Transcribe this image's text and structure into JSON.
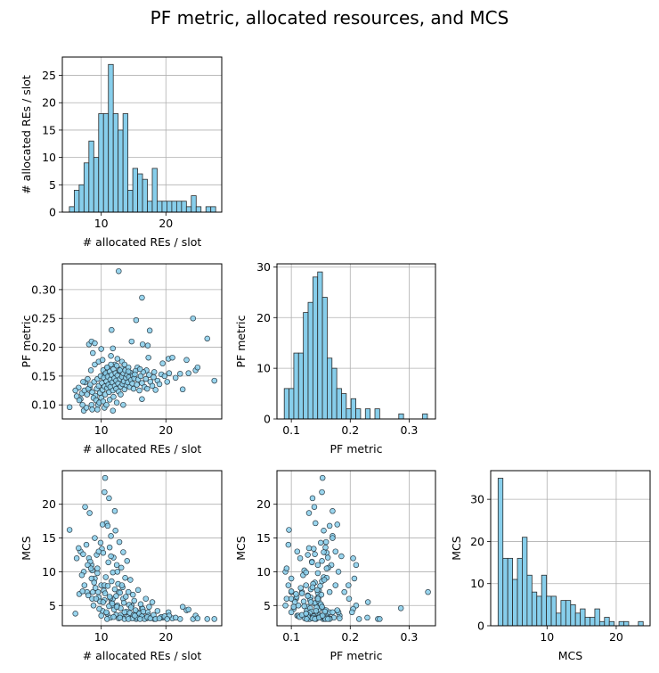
{
  "chart_data": {
    "type": "scatter",
    "title": "PF metric, allocated resources, and MCS",
    "variables": [
      {
        "key": "re",
        "label": "# allocated REs / slot",
        "lim": [
          3.98,
          28.64
        ],
        "ticks": [
          10,
          20
        ],
        "tick_labels": [
          "10",
          "20"
        ]
      },
      {
        "key": "pf",
        "label": "PF metric",
        "lim": [
          0.0756,
          0.3447
        ],
        "ticks": [
          0.1,
          0.2,
          0.3
        ],
        "tick_labels": [
          "0.1",
          "0.2",
          "0.3"
        ],
        "y_ticks": [
          0.1,
          0.15,
          0.2,
          0.25,
          0.3
        ],
        "y_tick_labels": [
          "0.10",
          "0.15",
          "0.20",
          "0.25",
          "0.30"
        ]
      },
      {
        "key": "mcs",
        "label": "MCS",
        "lim": [
          2.0,
          24.98
        ],
        "x_lim": [
          1.85,
          24.9
        ],
        "ticks": [
          10,
          20
        ],
        "tick_labels": [
          "10",
          "20"
        ],
        "y_ticks": [
          5,
          10,
          15,
          20
        ],
        "y_tick_labels": [
          "5",
          "10",
          "15",
          "20"
        ]
      }
    ],
    "histograms": [
      {
        "variable": "re",
        "bin_range": [
          5.07,
          27.7
        ],
        "counts": [
          1,
          4,
          5,
          9,
          13,
          10,
          18,
          18,
          27,
          18,
          15,
          18,
          4,
          8,
          7,
          6,
          2,
          8,
          2,
          2,
          2,
          2,
          2,
          2,
          1,
          3,
          1,
          0,
          1,
          1
        ],
        "ylim": [
          0,
          28.35
        ],
        "y_ticks": [
          0,
          5,
          10,
          15,
          20,
          25
        ],
        "y_tick_labels": [
          "0",
          "5",
          "10",
          "15",
          "20",
          "25"
        ]
      },
      {
        "variable": "pf",
        "bin_range": [
          0.088,
          0.331
        ],
        "counts": [
          6,
          6,
          13,
          13,
          21,
          23,
          28,
          29,
          24,
          12,
          10,
          6,
          5,
          2,
          4,
          2,
          0,
          2,
          0,
          2,
          0,
          0,
          0,
          0,
          1,
          0,
          0,
          0,
          0,
          1
        ],
        "ylim": [
          0,
          30.6
        ],
        "y_ticks": [
          0,
          10,
          20,
          30
        ],
        "y_tick_labels": [
          "0",
          "10",
          "20",
          "30"
        ]
      },
      {
        "variable": "mcs",
        "bin_range": [
          2.92,
          23.9
        ],
        "counts": [
          35,
          16,
          16,
          11,
          16,
          21,
          12,
          8,
          7,
          12,
          7,
          7,
          3,
          6,
          6,
          5,
          3,
          4,
          2,
          2,
          4,
          1,
          2,
          1,
          0,
          1,
          1,
          0,
          0,
          1
        ],
        "ylim": [
          0,
          36.8
        ],
        "y_ticks": [
          0,
          10,
          20,
          30
        ],
        "y_tick_labels": [
          "0",
          "10",
          "20",
          "30"
        ]
      }
    ],
    "points_columns": [
      "re",
      "pf",
      "mcs"
    ],
    "points": [
      [
        12.7,
        0.332,
        7.0
      ],
      [
        16.3,
        0.286,
        4.6
      ],
      [
        15.4,
        0.247,
        3.0
      ],
      [
        24.2,
        0.25,
        3.0
      ],
      [
        11.6,
        0.23,
        5.5
      ],
      [
        17.5,
        0.229,
        3.2
      ],
      [
        26.4,
        0.215,
        3.0
      ],
      [
        27.5,
        0.142,
        3.0
      ],
      [
        22.6,
        0.127,
        4.8
      ],
      [
        5.1,
        0.096,
        16.2
      ],
      [
        10.6,
        0.153,
        23.9
      ],
      [
        10.5,
        0.152,
        21.8
      ],
      [
        11.2,
        0.136,
        20.9
      ],
      [
        7.5,
        0.139,
        19.6
      ],
      [
        8.2,
        0.13,
        18.7
      ],
      [
        12.1,
        0.17,
        19.0
      ],
      [
        8.1,
        0.205,
        12.0
      ],
      [
        8.5,
        0.21,
        11.0
      ],
      [
        9.0,
        0.207,
        9.0
      ],
      [
        8.7,
        0.19,
        7.0
      ],
      [
        10.0,
        0.197,
        8.0
      ],
      [
        11.8,
        0.198,
        6.0
      ],
      [
        14.7,
        0.21,
        5.0
      ],
      [
        16.4,
        0.205,
        4.5
      ],
      [
        17.2,
        0.203,
        4.0
      ],
      [
        17.3,
        0.182,
        3.5
      ],
      [
        20.4,
        0.18,
        4.0
      ],
      [
        19.5,
        0.172,
        3.2
      ],
      [
        21.0,
        0.182,
        3.1
      ],
      [
        23.2,
        0.178,
        4.3
      ],
      [
        24.6,
        0.16,
        3.5
      ],
      [
        24.9,
        0.165,
        3.1
      ],
      [
        23.5,
        0.155,
        4.4
      ],
      [
        22.2,
        0.154,
        3.0
      ],
      [
        20.5,
        0.155,
        3.5
      ],
      [
        19.3,
        0.153,
        3.3
      ],
      [
        18.2,
        0.157,
        3.0
      ],
      [
        17.0,
        0.16,
        3.1
      ],
      [
        15.6,
        0.165,
        4.0
      ],
      [
        6.8,
        0.11,
        13.0
      ],
      [
        6.2,
        0.115,
        12.0
      ],
      [
        7.3,
        0.09,
        10.0
      ],
      [
        7.7,
        0.095,
        14.0
      ],
      [
        8.5,
        0.1,
        9.0
      ],
      [
        8.6,
        0.092,
        6.0
      ],
      [
        9.5,
        0.1,
        7.0
      ],
      [
        10.5,
        0.095,
        8.0
      ],
      [
        11.8,
        0.09,
        5.0
      ],
      [
        13.4,
        0.1,
        6.0
      ],
      [
        16.3,
        0.11,
        3.5
      ],
      [
        7.0,
        0.12,
        9.5
      ],
      [
        7.4,
        0.125,
        8.0
      ],
      [
        7.8,
        0.118,
        7.0
      ],
      [
        8.0,
        0.128,
        6.5
      ],
      [
        8.3,
        0.135,
        11.5
      ],
      [
        8.6,
        0.122,
        10.2
      ],
      [
        8.9,
        0.14,
        8.4
      ],
      [
        9.1,
        0.116,
        7.6
      ],
      [
        9.3,
        0.128,
        12.5
      ],
      [
        9.4,
        0.145,
        9.8
      ],
      [
        9.6,
        0.133,
        6.2
      ],
      [
        9.8,
        0.121,
        5.6
      ],
      [
        9.9,
        0.15,
        14.3
      ],
      [
        10.1,
        0.138,
        13.4
      ],
      [
        10.2,
        0.126,
        4.2
      ],
      [
        10.3,
        0.16,
        12.8
      ],
      [
        10.4,
        0.147,
        7.2
      ],
      [
        10.5,
        0.132,
        5.8
      ],
      [
        10.6,
        0.118,
        6.8
      ],
      [
        10.7,
        0.155,
        9.2
      ],
      [
        10.8,
        0.141,
        17.2
      ],
      [
        10.9,
        0.129,
        3.8
      ],
      [
        11.0,
        0.165,
        16.8
      ],
      [
        11.0,
        0.149,
        7.9
      ],
      [
        11.1,
        0.135,
        11.4
      ],
      [
        11.2,
        0.122,
        4.9
      ],
      [
        11.3,
        0.158,
        13.6
      ],
      [
        11.4,
        0.144,
        6.1
      ],
      [
        11.4,
        0.131,
        3.2
      ],
      [
        11.5,
        0.17,
        15.3
      ],
      [
        11.6,
        0.152,
        8.6
      ],
      [
        11.7,
        0.139,
        5.3
      ],
      [
        11.8,
        0.125,
        9.9
      ],
      [
        11.9,
        0.162,
        12.1
      ],
      [
        12.0,
        0.146,
        4.4
      ],
      [
        12.1,
        0.133,
        7.4
      ],
      [
        12.2,
        0.155,
        16.1
      ],
      [
        12.3,
        0.142,
        3.6
      ],
      [
        12.3,
        0.128,
        6.4
      ],
      [
        12.4,
        0.168,
        11.0
      ],
      [
        12.5,
        0.151,
        5.0
      ],
      [
        12.6,
        0.137,
        8.2
      ],
      [
        12.7,
        0.123,
        3.1
      ],
      [
        12.8,
        0.159,
        14.4
      ],
      [
        12.9,
        0.145,
        6.9
      ],
      [
        13.0,
        0.132,
        4.6
      ],
      [
        13.1,
        0.163,
        10.6
      ],
      [
        13.2,
        0.149,
        3.4
      ],
      [
        13.3,
        0.136,
        7.7
      ],
      [
        13.4,
        0.155,
        12.9
      ],
      [
        13.5,
        0.141,
        5.4
      ],
      [
        13.6,
        0.127,
        3.0
      ],
      [
        13.7,
        0.16,
        9.1
      ],
      [
        13.8,
        0.147,
        6.3
      ],
      [
        13.9,
        0.134,
        4.1
      ],
      [
        14.0,
        0.152,
        11.6
      ],
      [
        14.1,
        0.139,
        3.3
      ],
      [
        14.2,
        0.165,
        7.0
      ],
      [
        14.3,
        0.148,
        5.1
      ],
      [
        14.4,
        0.131,
        3.9
      ],
      [
        14.5,
        0.156,
        8.8
      ],
      [
        14.6,
        0.143,
        4.7
      ],
      [
        14.8,
        0.137,
        3.1
      ],
      [
        14.9,
        0.151,
        6.6
      ],
      [
        15.0,
        0.128,
        3.6
      ],
      [
        15.1,
        0.146,
        5.7
      ],
      [
        15.3,
        0.159,
        4.3
      ],
      [
        15.5,
        0.135,
        3.2
      ],
      [
        15.7,
        0.144,
        7.3
      ],
      [
        15.9,
        0.125,
        3.8
      ],
      [
        16.1,
        0.15,
        5.2
      ],
      [
        16.3,
        0.138,
        3.4
      ],
      [
        16.5,
        0.157,
        4.1
      ],
      [
        16.7,
        0.131,
        3.0
      ],
      [
        16.9,
        0.145,
        6.0
      ],
      [
        17.1,
        0.128,
        3.3
      ],
      [
        17.4,
        0.152,
        4.8
      ],
      [
        17.6,
        0.14,
        3.1
      ],
      [
        17.9,
        0.133,
        5.5
      ],
      [
        18.1,
        0.148,
        3.6
      ],
      [
        18.4,
        0.126,
        3.0
      ],
      [
        18.7,
        0.142,
        4.2
      ],
      [
        19.0,
        0.136,
        3.1
      ],
      [
        19.8,
        0.15,
        3.4
      ],
      [
        20.2,
        0.14,
        3.0
      ],
      [
        21.5,
        0.147,
        3.2
      ],
      [
        8.8,
        0.112,
        5.0
      ],
      [
        9.2,
        0.108,
        6.0
      ],
      [
        9.7,
        0.104,
        4.5
      ],
      [
        10.0,
        0.112,
        3.5
      ],
      [
        10.3,
        0.106,
        5.5
      ],
      [
        10.8,
        0.1,
        4.0
      ],
      [
        11.3,
        0.109,
        6.3
      ],
      [
        11.9,
        0.114,
        3.3
      ],
      [
        12.4,
        0.104,
        4.8
      ],
      [
        13.0,
        0.118,
        3.6
      ],
      [
        6.5,
        0.13,
        13.5
      ],
      [
        7.2,
        0.14,
        12.6
      ],
      [
        7.9,
        0.145,
        11.0
      ],
      [
        8.4,
        0.16,
        10.5
      ],
      [
        9.0,
        0.17,
        15.0
      ],
      [
        9.6,
        0.175,
        13.0
      ],
      [
        10.2,
        0.178,
        17.0
      ],
      [
        11.5,
        0.185,
        12.3
      ],
      [
        12.5,
        0.18,
        10.0
      ],
      [
        13.2,
        0.175,
        8.0
      ],
      [
        6.0,
        0.125,
        3.8
      ],
      [
        6.6,
        0.108,
        6.7
      ],
      [
        7.1,
        0.1,
        7.1
      ],
      [
        9.4,
        0.092,
        10.5
      ],
      [
        10.9,
        0.165,
        3.0
      ],
      [
        12.9,
        0.16,
        3.2
      ],
      [
        13.6,
        0.17,
        4.0
      ],
      [
        14.2,
        0.158,
        3.0
      ],
      [
        15.2,
        0.153,
        3.5
      ],
      [
        16.0,
        0.162,
        3.0
      ]
    ]
  }
}
